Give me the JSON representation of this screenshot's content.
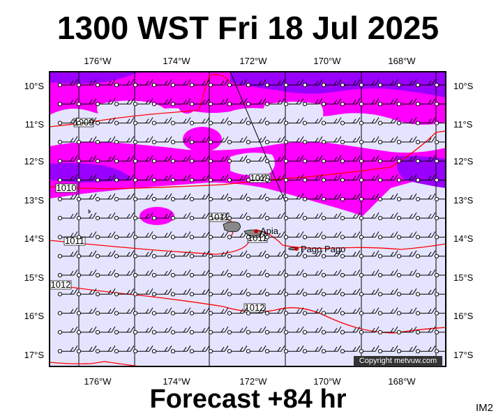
{
  "title": "1300 WST Fri 18 Jul 2025",
  "subtitle": "Forecast +84 hr",
  "product_code": "IM2",
  "copyright": "Copyright metvuw.com",
  "lon_labels": [
    "176°W",
    "174°W",
    "172°W",
    "170°W",
    "168°W"
  ],
  "lat_labels": [
    "10°S",
    "11°S",
    "12°S",
    "13°S",
    "14°S",
    "15°S",
    "16°S",
    "17°S"
  ],
  "isobar_labels": [
    "1009",
    "1010",
    "1010",
    "1011",
    "1011",
    "1011",
    "1012",
    "1012"
  ],
  "places": [
    "Apia",
    "Pago Pago"
  ],
  "colors": {
    "background_field": "#e4e4ff",
    "rain_light": "#ff00ff",
    "rain_heavy": "#9a00ff",
    "isobar": "#ff0000",
    "place_marker": "#cc0000"
  }
}
